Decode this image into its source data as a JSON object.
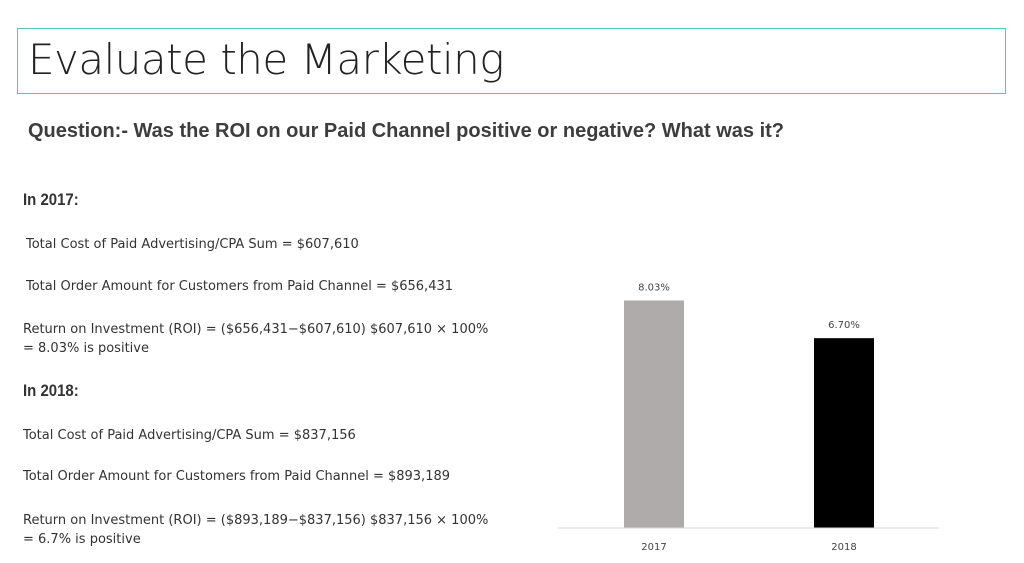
{
  "title": "Evaluate the Marketing",
  "question": "Question:-  Was the ROI on our Paid Channel positive or negative? What was it?",
  "sections": [
    {
      "heading": "In 2017:",
      "cost": "Total Cost of Paid Advertising/CPA Sum = $607,610",
      "orders": "Total Order Amount for Customers from Paid Channel   = $656,431",
      "roi": "Return on Investment (ROI) =   ($656,431−$607,610) $607,610 × 100%   = 8.03%  is positive"
    },
    {
      "heading": "In 2018:",
      "cost": "Total Cost of Paid Advertising/CPA Sum = $837,156",
      "orders": "Total Order Amount for Customers from Paid Channel = $893,189",
      "roi": "Return on Investment (ROI) = ($893,189−$837,156) $837,156 × 100% = 6.7% is positive"
    }
  ],
  "chart_data": {
    "type": "bar",
    "categories": [
      "2017",
      "2018"
    ],
    "values": [
      8.03,
      6.7
    ],
    "data_labels": [
      "8.03%",
      "6.70%"
    ],
    "colors": [
      "#aeabaa",
      "#000000"
    ],
    "title": "",
    "xlabel": "",
    "ylabel": "",
    "ylim": [
      0,
      9
    ],
    "grid": false
  }
}
